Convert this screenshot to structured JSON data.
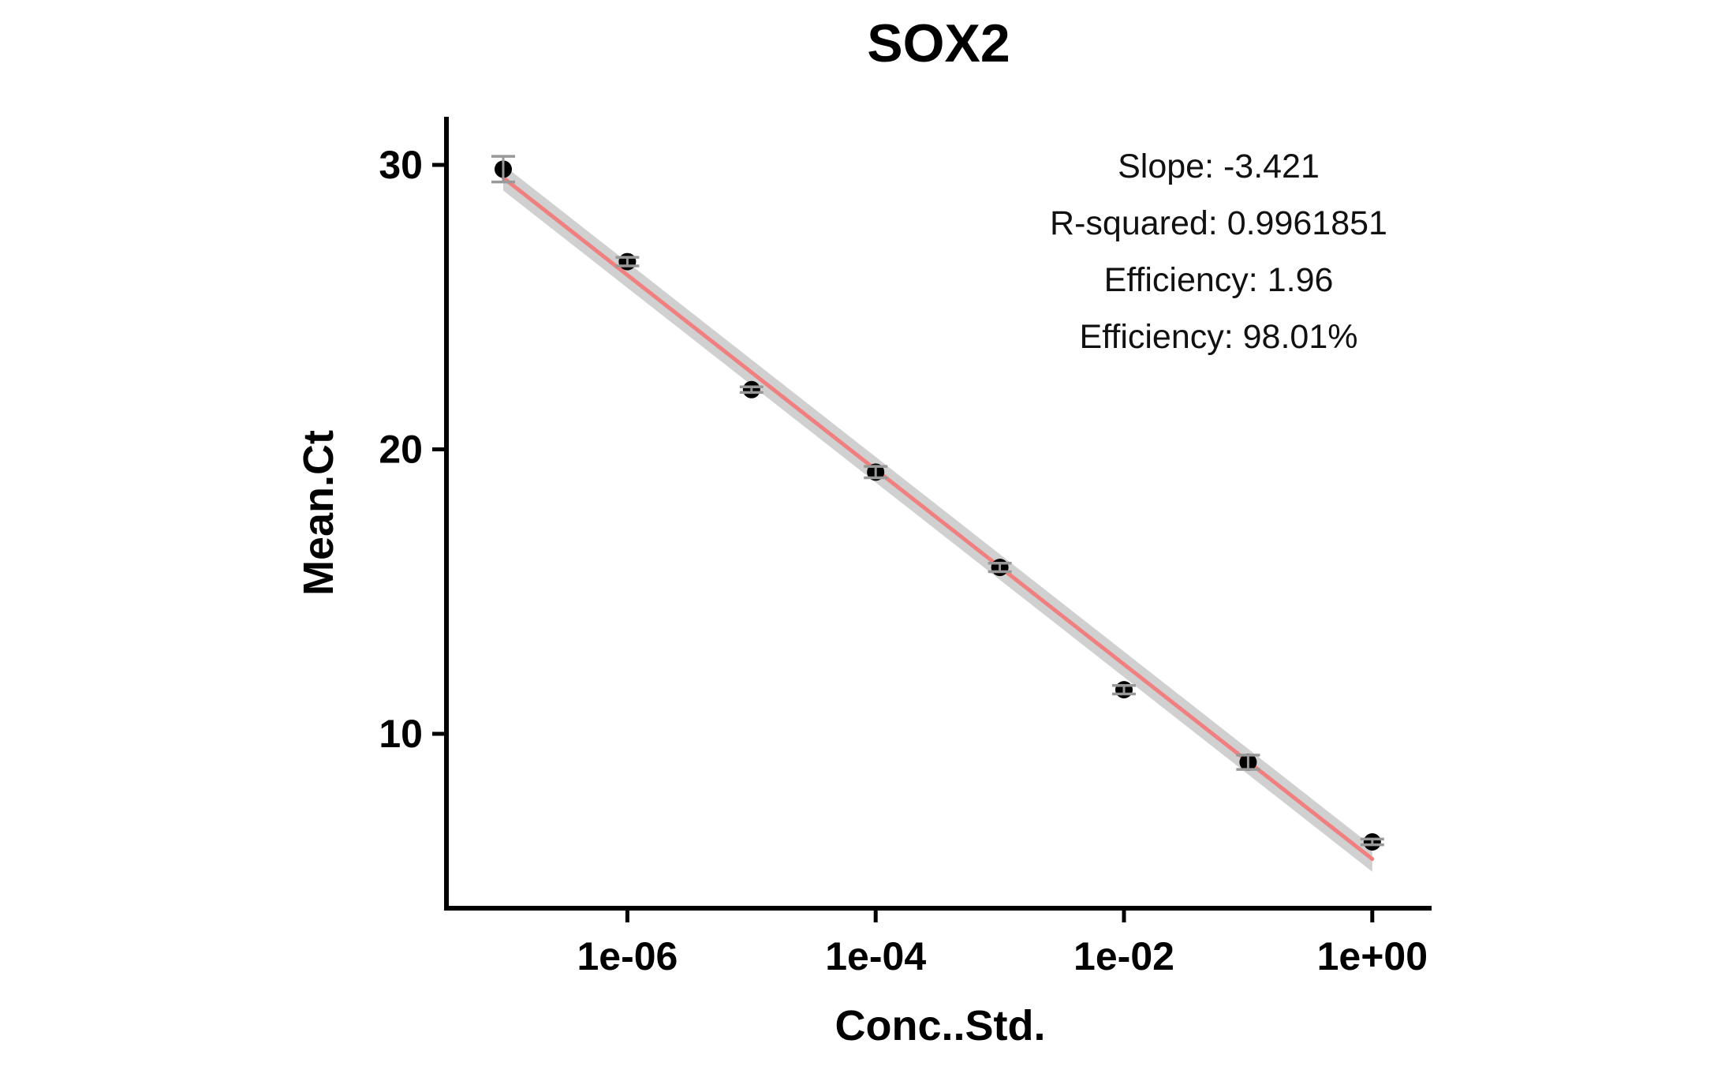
{
  "chart_data": {
    "type": "scatter",
    "title": "SOX2",
    "xlabel": "Conc..Std.",
    "ylabel": "Mean.Ct",
    "x_scale": "log10",
    "xlim": [
      1e-08,
      1
    ],
    "ylim": [
      4,
      32
    ],
    "x_ticks": [
      {
        "value": 1e-06,
        "label": "1e-06"
      },
      {
        "value": 0.0001,
        "label": "1e-04"
      },
      {
        "value": 0.01,
        "label": "1e-02"
      },
      {
        "value": 1,
        "label": "1e+00"
      }
    ],
    "y_ticks": [
      {
        "value": 10,
        "label": "10"
      },
      {
        "value": 20,
        "label": "20"
      },
      {
        "value": 30,
        "label": "30"
      }
    ],
    "points": [
      {
        "x": 1e-07,
        "y": 29.85,
        "err": 0.45
      },
      {
        "x": 1e-06,
        "y": 26.6,
        "err": 0.15
      },
      {
        "x": 1e-05,
        "y": 22.1,
        "err": 0.1
      },
      {
        "x": 0.0001,
        "y": 19.2,
        "err": 0.2
      },
      {
        "x": 0.001,
        "y": 15.85,
        "err": 0.15
      },
      {
        "x": 0.01,
        "y": 11.55,
        "err": 0.15
      },
      {
        "x": 0.1,
        "y": 9.0,
        "err": 0.25
      },
      {
        "x": 1,
        "y": 6.2,
        "err": 0.1
      }
    ],
    "fit": {
      "slope": -3.421,
      "x_start": 1e-07,
      "x_end": 1,
      "y_at_x_start": 29.55,
      "y_at_x_end": 5.6,
      "band": 0.45,
      "line_color": "#f08080",
      "band_color": "#c8c8c8"
    },
    "annotations": [
      "Slope: -3.421",
      "R-squared: 0.9961851",
      "Efficiency: 1.96",
      "Efficiency: 98.01%"
    ],
    "grid": false,
    "legend": "none",
    "point_color": "#000000",
    "errorbar_color": "#999999"
  }
}
